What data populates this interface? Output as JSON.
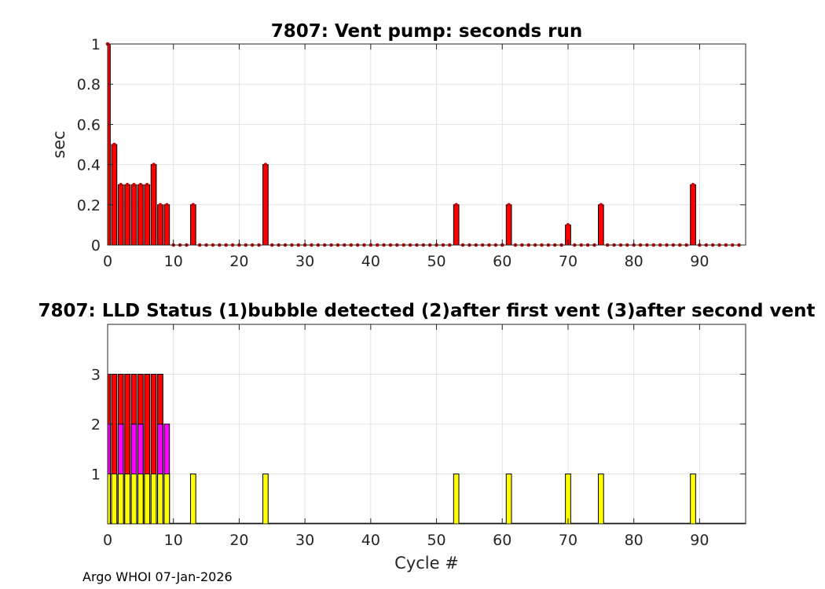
{
  "chart_data": [
    {
      "type": "bar",
      "title": "7807: Vent pump: seconds run",
      "xlabel": "",
      "ylabel": "sec",
      "xlim": [
        0,
        97
      ],
      "ylim": [
        0,
        1
      ],
      "xticks": [
        "0",
        "10",
        "20",
        "30",
        "40",
        "50",
        "60",
        "70",
        "80",
        "90"
      ],
      "yticks": [
        "0",
        "0.2",
        "0.4",
        "0.6",
        "0.8",
        "1"
      ],
      "grid": true,
      "bar_color": "#ff0000",
      "marker_color": "#cc0000",
      "x": [
        0,
        1,
        2,
        3,
        4,
        5,
        6,
        7,
        8,
        9,
        10,
        11,
        12,
        13,
        14,
        15,
        16,
        17,
        18,
        19,
        20,
        21,
        22,
        23,
        24,
        25,
        26,
        27,
        28,
        29,
        30,
        31,
        32,
        33,
        34,
        35,
        36,
        37,
        38,
        39,
        40,
        41,
        42,
        43,
        44,
        45,
        46,
        47,
        48,
        49,
        50,
        51,
        52,
        53,
        54,
        55,
        56,
        57,
        58,
        59,
        60,
        61,
        62,
        63,
        64,
        65,
        66,
        67,
        68,
        69,
        70,
        71,
        72,
        73,
        74,
        75,
        76,
        77,
        78,
        79,
        80,
        81,
        82,
        83,
        84,
        85,
        86,
        87,
        88,
        89,
        90,
        91,
        92,
        93,
        94,
        95,
        96
      ],
      "values": [
        1,
        0.5,
        0.3,
        0.3,
        0.3,
        0.3,
        0.3,
        0.4,
        0.2,
        0.2,
        0,
        0,
        0,
        0.2,
        0,
        0,
        0,
        0,
        0,
        0,
        0,
        0,
        0,
        0,
        0.4,
        0,
        0,
        0,
        0,
        0,
        0,
        0,
        0,
        0,
        0,
        0,
        0,
        0,
        0,
        0,
        0,
        0,
        0,
        0,
        0,
        0,
        0,
        0,
        0,
        0,
        0,
        0,
        0,
        0.2,
        0,
        0,
        0,
        0,
        0,
        0,
        0,
        0.2,
        0,
        0,
        0,
        0,
        0,
        0,
        0,
        0,
        0.1,
        0,
        0,
        0,
        0,
        0.2,
        0,
        0,
        0,
        0,
        0,
        0,
        0,
        0,
        0,
        0,
        0,
        0,
        0,
        0.3,
        0,
        0,
        0,
        0,
        0,
        0,
        0
      ]
    },
    {
      "type": "bar",
      "stacked": "overlay",
      "title": "7807: LLD Status   (1)bubble detected   (2)after first vent  (3)after second vent",
      "xlabel": "Cycle #",
      "ylabel": "",
      "xlim": [
        0,
        97
      ],
      "ylim": [
        0,
        4
      ],
      "xticks": [
        "0",
        "10",
        "20",
        "30",
        "40",
        "50",
        "60",
        "70",
        "80",
        "90"
      ],
      "yticks": [
        "1",
        "2",
        "3"
      ],
      "grid": true,
      "x": [
        0,
        1,
        2,
        3,
        4,
        5,
        6,
        7,
        8,
        9,
        10,
        11,
        12,
        13,
        14,
        15,
        16,
        17,
        18,
        19,
        20,
        21,
        22,
        23,
        24,
        25,
        26,
        27,
        28,
        29,
        30,
        31,
        32,
        33,
        34,
        35,
        36,
        37,
        38,
        39,
        40,
        41,
        42,
        43,
        44,
        45,
        46,
        47,
        48,
        49,
        50,
        51,
        52,
        53,
        54,
        55,
        56,
        57,
        58,
        59,
        60,
        61,
        62,
        63,
        64,
        65,
        66,
        67,
        68,
        69,
        70,
        71,
        72,
        73,
        74,
        75,
        76,
        77,
        78,
        79,
        80,
        81,
        82,
        83,
        84,
        85,
        86,
        87,
        88,
        89,
        90,
        91,
        92,
        93,
        94,
        95,
        96
      ],
      "series": [
        {
          "name": "(3)after second vent",
          "color": "#ff0000",
          "values": [
            3,
            3,
            3,
            3,
            3,
            3,
            3,
            3,
            3,
            0,
            0,
            0,
            0,
            0,
            0,
            0,
            0,
            0,
            0,
            0,
            0,
            0,
            0,
            0,
            0,
            0,
            0,
            0,
            0,
            0,
            0,
            0,
            0,
            0,
            0,
            0,
            0,
            0,
            0,
            0,
            0,
            0,
            0,
            0,
            0,
            0,
            0,
            0,
            0,
            0,
            0,
            0,
            0,
            0,
            0,
            0,
            0,
            0,
            0,
            0,
            0,
            0,
            0,
            0,
            0,
            0,
            0,
            0,
            0,
            0,
            0,
            0,
            0,
            0,
            0,
            0,
            0,
            0,
            0,
            0,
            0,
            0,
            0,
            0,
            0,
            0,
            0,
            0,
            0,
            0,
            0,
            0,
            0,
            0,
            0,
            0,
            0
          ]
        },
        {
          "name": "(2)after first vent",
          "color": "#ff00ff",
          "values": [
            2,
            0,
            2,
            0,
            2,
            2,
            0,
            0,
            2,
            2,
            0,
            0,
            0,
            0,
            0,
            0,
            0,
            0,
            0,
            0,
            0,
            0,
            0,
            0,
            0,
            0,
            0,
            0,
            0,
            0,
            0,
            0,
            0,
            0,
            0,
            0,
            0,
            0,
            0,
            0,
            0,
            0,
            0,
            0,
            0,
            0,
            0,
            0,
            0,
            0,
            0,
            0,
            0,
            0,
            0,
            0,
            0,
            0,
            0,
            0,
            0,
            0,
            0,
            0,
            0,
            0,
            0,
            0,
            0,
            0,
            0,
            0,
            0,
            0,
            0,
            0,
            0,
            0,
            0,
            0,
            0,
            0,
            0,
            0,
            0,
            0,
            0,
            0,
            0,
            0,
            0,
            0,
            0,
            0,
            0,
            0,
            0
          ]
        },
        {
          "name": "(1)bubble detected",
          "color": "#ffff00",
          "values": [
            1,
            1,
            1,
            1,
            1,
            1,
            1,
            1,
            1,
            1,
            0,
            0,
            0,
            1,
            0,
            0,
            0,
            0,
            0,
            0,
            0,
            0,
            0,
            0,
            1,
            0,
            0,
            0,
            0,
            0,
            0,
            0,
            0,
            0,
            0,
            0,
            0,
            0,
            0,
            0,
            0,
            0,
            0,
            0,
            0,
            0,
            0,
            0,
            0,
            0,
            0,
            0,
            0,
            1,
            0,
            0,
            0,
            0,
            0,
            0,
            0,
            1,
            0,
            0,
            0,
            0,
            0,
            0,
            0,
            0,
            1,
            0,
            0,
            0,
            0,
            1,
            0,
            0,
            0,
            0,
            0,
            0,
            0,
            0,
            0,
            0,
            0,
            0,
            0,
            1,
            0,
            0,
            0,
            0,
            0,
            0,
            0
          ]
        }
      ]
    }
  ],
  "footer": "Argo WHOI 07-Jan-2026"
}
